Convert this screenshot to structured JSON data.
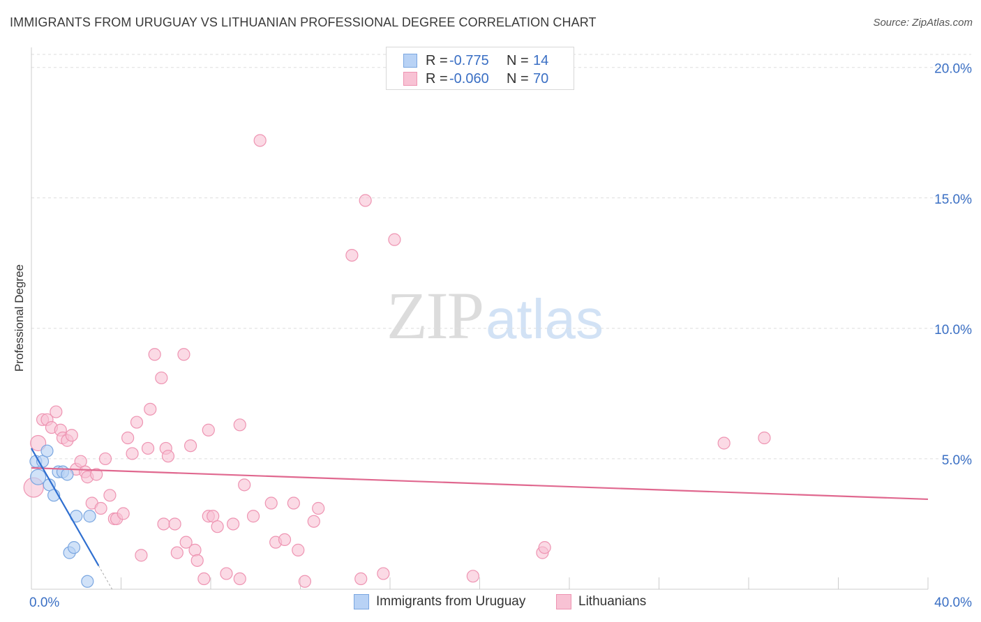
{
  "header": {
    "title": "IMMIGRANTS FROM URUGUAY VS LITHUANIAN PROFESSIONAL DEGREE CORRELATION CHART",
    "source": "Source: ZipAtlas.com"
  },
  "watermark": {
    "zip": "ZIP",
    "atlas": "atlas"
  },
  "legend_top": {
    "rows": [
      {
        "r_label": "R =",
        "r_value": "-0.775",
        "n_label": "N =",
        "n_value": "14"
      },
      {
        "r_label": "R =",
        "r_value": "-0.060",
        "n_label": "N =",
        "n_value": "70"
      }
    ]
  },
  "colors": {
    "uruguay_fill": "#b8d2f5",
    "uruguay_stroke": "#7aa6e0",
    "uruguay_line": "#2f6fd0",
    "lithuanian_fill": "#f8c2d4",
    "lithuanian_stroke": "#ee94b2",
    "lithuanian_line": "#e0688f",
    "axis_text": "#3a6fc4",
    "grid": "#dedede"
  },
  "chart_data": {
    "type": "scatter",
    "title": "IMMIGRANTS FROM URUGUAY VS LITHUANIAN PROFESSIONAL DEGREE CORRELATION CHART",
    "xlabel": "",
    "ylabel": "Professional Degree",
    "xlim": [
      0,
      40
    ],
    "ylim": [
      0,
      20
    ],
    "x_tick_labels": [
      "0.0%",
      "40.0%"
    ],
    "y_ticks": [
      5,
      10,
      15,
      20
    ],
    "y_tick_labels": [
      "5.0%",
      "10.0%",
      "15.0%",
      "20.0%"
    ],
    "grid": true,
    "legend_position": "bottom",
    "series": [
      {
        "name": "Immigrants from Uruguay",
        "r": -0.775,
        "n": 14,
        "points": [
          [
            0.2,
            4.9
          ],
          [
            0.3,
            4.3
          ],
          [
            0.5,
            4.9
          ],
          [
            0.7,
            5.3
          ],
          [
            0.8,
            4.0
          ],
          [
            1.0,
            3.6
          ],
          [
            1.2,
            4.5
          ],
          [
            1.4,
            4.5
          ],
          [
            1.6,
            4.4
          ],
          [
            2.0,
            2.8
          ],
          [
            2.6,
            2.8
          ],
          [
            1.7,
            1.4
          ],
          [
            1.9,
            1.6
          ],
          [
            2.5,
            0.3
          ]
        ],
        "trend": {
          "x": [
            0,
            3.0
          ],
          "y": [
            5.4,
            0.9
          ],
          "dashed_to": [
            3.6,
            0.0
          ]
        }
      },
      {
        "name": "Lithuanians",
        "r": -0.06,
        "n": 70,
        "points": [
          [
            0.1,
            3.9
          ],
          [
            0.3,
            5.6
          ],
          [
            0.5,
            6.5
          ],
          [
            0.7,
            6.5
          ],
          [
            0.9,
            6.2
          ],
          [
            1.1,
            6.8
          ],
          [
            1.3,
            6.1
          ],
          [
            1.4,
            5.8
          ],
          [
            1.6,
            5.7
          ],
          [
            1.8,
            5.9
          ],
          [
            2.0,
            4.6
          ],
          [
            2.2,
            4.9
          ],
          [
            2.4,
            4.5
          ],
          [
            2.5,
            4.3
          ],
          [
            2.7,
            3.3
          ],
          [
            2.9,
            4.4
          ],
          [
            3.1,
            3.1
          ],
          [
            3.3,
            5.0
          ],
          [
            3.5,
            3.6
          ],
          [
            3.7,
            2.7
          ],
          [
            3.8,
            2.7
          ],
          [
            4.1,
            2.9
          ],
          [
            4.3,
            5.8
          ],
          [
            4.5,
            5.2
          ],
          [
            4.7,
            6.4
          ],
          [
            4.9,
            1.3
          ],
          [
            5.2,
            5.4
          ],
          [
            5.3,
            6.9
          ],
          [
            5.5,
            9.0
          ],
          [
            5.8,
            8.1
          ],
          [
            5.9,
            2.5
          ],
          [
            6.0,
            5.4
          ],
          [
            6.1,
            5.1
          ],
          [
            6.4,
            2.5
          ],
          [
            6.5,
            1.4
          ],
          [
            6.8,
            9.0
          ],
          [
            6.9,
            1.8
          ],
          [
            7.1,
            5.5
          ],
          [
            7.3,
            1.5
          ],
          [
            7.4,
            1.1
          ],
          [
            7.7,
            0.4
          ],
          [
            7.9,
            6.1
          ],
          [
            7.9,
            2.8
          ],
          [
            8.1,
            2.8
          ],
          [
            8.3,
            2.4
          ],
          [
            8.7,
            0.6
          ],
          [
            9.0,
            2.5
          ],
          [
            9.3,
            6.3
          ],
          [
            9.3,
            0.4
          ],
          [
            9.5,
            4.0
          ],
          [
            9.9,
            2.8
          ],
          [
            10.2,
            17.2
          ],
          [
            10.7,
            3.3
          ],
          [
            10.9,
            1.8
          ],
          [
            11.3,
            1.9
          ],
          [
            11.7,
            3.3
          ],
          [
            11.9,
            1.5
          ],
          [
            12.2,
            0.3
          ],
          [
            12.6,
            2.6
          ],
          [
            12.8,
            3.1
          ],
          [
            14.3,
            12.8
          ],
          [
            14.9,
            14.9
          ],
          [
            14.7,
            0.4
          ],
          [
            15.7,
            0.6
          ],
          [
            16.2,
            13.4
          ],
          [
            19.7,
            0.5
          ],
          [
            22.8,
            1.4
          ],
          [
            22.9,
            1.6
          ],
          [
            30.9,
            5.6
          ],
          [
            32.7,
            5.8
          ]
        ],
        "trend": {
          "x": [
            0,
            40
          ],
          "y": [
            4.65,
            3.45
          ]
        }
      }
    ]
  },
  "legend_bottom": {
    "items": [
      {
        "label": "Immigrants from Uruguay"
      },
      {
        "label": "Lithuanians"
      }
    ]
  }
}
